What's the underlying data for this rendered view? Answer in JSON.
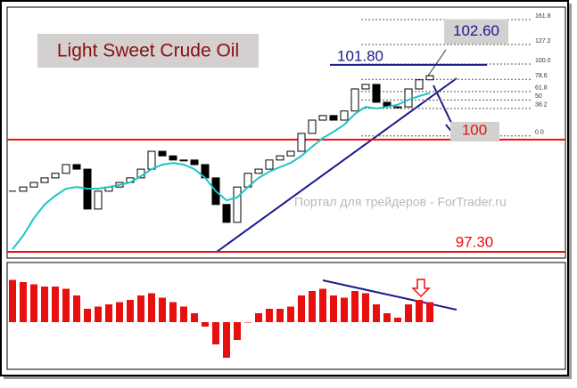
{
  "chart_data": {
    "type": "candlestick",
    "title": "Light Sweet Crude Oil",
    "watermark": "Портал для трейдеров - ForTrader.ru",
    "closes": [
      98.76,
      98.86,
      98.97,
      99.08,
      99.19,
      99.4,
      99.29,
      98.33,
      98.76,
      98.86,
      98.97,
      99.08,
      99.29,
      99.72,
      99.61,
      99.51,
      99.51,
      99.4,
      99.08,
      98.44,
      98.01,
      98.86,
      99.19,
      99.29,
      99.51,
      99.61,
      99.72,
      100.15,
      100.47,
      100.58,
      100.47,
      100.69,
      101.22,
      101.33,
      100.9,
      100.79,
      100.79,
      101.22,
      101.44,
      101.54
    ],
    "ma": [
      97.36,
      97.69,
      98.11,
      98.44,
      98.65,
      98.82,
      98.86,
      98.82,
      98.82,
      98.86,
      98.91,
      98.97,
      99.12,
      99.29,
      99.4,
      99.44,
      99.4,
      99.29,
      99.08,
      98.76,
      98.54,
      98.61,
      98.86,
      99.08,
      99.23,
      99.34,
      99.44,
      99.61,
      99.83,
      100.04,
      100.19,
      100.36,
      100.62,
      100.79,
      100.75,
      100.79,
      100.84,
      100.96,
      101.05,
      101.12
    ],
    "ylim": [
      97.15,
      103.19
    ],
    "support_levels": [
      {
        "value": 100,
        "label": "100"
      },
      {
        "value": 97.3,
        "label": "97.30"
      }
    ],
    "resistance": {
      "value": 101.8,
      "label": "101.80"
    },
    "target": {
      "value": 102.6,
      "label": "102.60"
    },
    "fib": {
      "levels": [
        161.8,
        127.2,
        {
          "value": 100,
          "label": "100.0"
        },
        78.6,
        61.8,
        50,
        38.2,
        {
          "value": 0,
          "label": "0.0"
        }
      ],
      "prices": [
        100.09,
        101.82
      ]
    },
    "oscillator": {
      "values": [
        0.95,
        0.9,
        0.85,
        0.8,
        0.8,
        0.75,
        0.6,
        0.3,
        0.35,
        0.4,
        0.45,
        0.5,
        0.6,
        0.65,
        0.55,
        0.45,
        0.35,
        0.2,
        -0.1,
        -0.5,
        -0.8,
        -0.4,
        0.0,
        0.2,
        0.3,
        0.3,
        0.35,
        0.6,
        0.7,
        0.75,
        0.6,
        0.55,
        0.7,
        0.65,
        0.4,
        0.2,
        0.1,
        0.4,
        0.5,
        0.45
      ],
      "ylim": [
        -1.06,
        1.34
      ],
      "color": "#e8100f"
    }
  }
}
